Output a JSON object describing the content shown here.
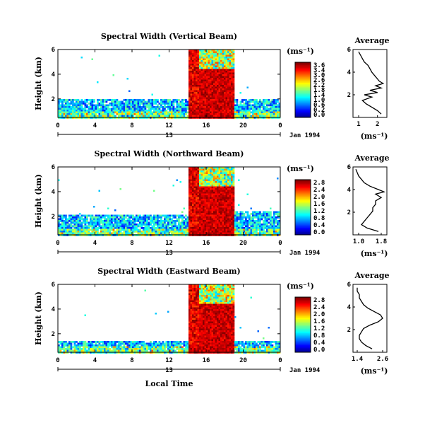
{
  "chart_data": [
    {
      "type": "heatmap",
      "title": "Spectral Width (Vertical Beam)",
      "ylabel": "Height (km)",
      "yticks": [
        "2",
        "4",
        "6"
      ],
      "xticks": [
        "0",
        "4",
        "8",
        "12",
        "16",
        "20",
        "0"
      ],
      "ylim": [
        0.5,
        6
      ],
      "xlim": [
        0,
        24
      ],
      "date_marker": "13",
      "date_label": "Jan 1994",
      "colorbar": {
        "unit": "(ms⁻¹)",
        "ticks": [
          "3.6",
          "3.4",
          "3.0",
          "2.6",
          "2.2",
          "1.8",
          "1.4",
          "1.0",
          "0.6",
          "0.2",
          "0.0"
        ]
      },
      "regions": [
        {
          "desc": "low layer",
          "x": [
            0,
            14
          ],
          "y": [
            0.5,
            2.0
          ],
          "width": 0.6
        },
        {
          "desc": "storm core",
          "x": [
            14,
            19
          ],
          "y": [
            0.5,
            6.0
          ],
          "width": 3.0
        },
        {
          "desc": "after storm",
          "x": [
            19,
            24
          ],
          "y": [
            0.5,
            2.0
          ],
          "width": 0.6
        }
      ],
      "average": {
        "title": "Average",
        "xlabel": "(ms⁻¹)",
        "xticks": [
          "1",
          "2"
        ],
        "yticks": [
          "2",
          "4",
          "6"
        ],
        "xlim": [
          0.7,
          2.5
        ],
        "ylim": [
          0,
          6
        ],
        "profile": {
          "height": [
            0.3,
            0.6,
            0.9,
            1.2,
            1.5,
            1.8,
            2.0,
            2.2,
            2.4,
            2.6,
            2.8,
            3.0,
            3.2,
            3.4,
            3.6,
            3.8,
            4.0,
            4.3,
            4.6,
            4.9,
            5.2,
            5.5,
            5.8
          ],
          "width": [
            2.2,
            2.0,
            1.7,
            1.4,
            1.2,
            1.7,
            1.3,
            2.0,
            1.6,
            2.2,
            1.9,
            2.3,
            2.1,
            2.0,
            1.9,
            1.8,
            1.7,
            1.6,
            1.5,
            1.3,
            1.2,
            1.1,
            1.0
          ]
        }
      }
    },
    {
      "type": "heatmap",
      "title": "Spectral Width (Northward Beam)",
      "ylabel": "Height (km)",
      "yticks": [
        "2",
        "4",
        "6"
      ],
      "xticks": [
        "0",
        "4",
        "8",
        "12",
        "16",
        "20",
        "0"
      ],
      "ylim": [
        0.5,
        6
      ],
      "xlim": [
        0,
        24
      ],
      "date_marker": "13",
      "date_label": "Jan 1994",
      "colorbar": {
        "unit": "(ms⁻¹)",
        "ticks": [
          "2.8",
          "2.4",
          "2.0",
          "1.6",
          "1.2",
          "0.8",
          "0.4",
          "0.0"
        ]
      },
      "regions": [
        {
          "desc": "low layer",
          "x": [
            0,
            14
          ],
          "y": [
            0.5,
            2.2
          ],
          "width": 0.6
        },
        {
          "desc": "storm core",
          "x": [
            14,
            19
          ],
          "y": [
            0.5,
            6.0
          ],
          "width": 2.4
        },
        {
          "desc": "after storm",
          "x": [
            19,
            24
          ],
          "y": [
            0.5,
            2.5
          ],
          "width": 0.6
        }
      ],
      "average": {
        "title": "Average",
        "xlabel": "(ms⁻¹)",
        "xticks": [
          "1.0",
          "1.8"
        ],
        "yticks": [
          "2",
          "4",
          "6"
        ],
        "xlim": [
          0.8,
          2.0
        ],
        "ylim": [
          0,
          6
        ],
        "profile": {
          "height": [
            0.3,
            0.6,
            0.9,
            1.2,
            1.5,
            1.8,
            2.1,
            2.4,
            2.7,
            3.0,
            3.3,
            3.6,
            3.8,
            4.0,
            4.3,
            4.6,
            4.9,
            5.2,
            5.5,
            5.8
          ],
          "width": [
            1.7,
            1.3,
            1.1,
            1.2,
            1.3,
            1.4,
            1.5,
            1.5,
            1.6,
            1.6,
            1.8,
            1.6,
            1.9,
            1.7,
            1.4,
            1.2,
            1.1,
            1.0,
            0.95,
            0.9
          ]
        }
      }
    },
    {
      "type": "heatmap",
      "title": "Spectral Width (Eastward Beam)",
      "ylabel": "Height (km)",
      "yticks": [
        "2",
        "4",
        "6"
      ],
      "xticks": [
        "0",
        "4",
        "8",
        "12",
        "16",
        "20",
        "0"
      ],
      "ylim": [
        0.5,
        6
      ],
      "xlim": [
        0,
        24
      ],
      "date_marker": "13",
      "date_label": "Jan 1994",
      "xlabel": "Local Time",
      "colorbar": {
        "unit": "(ms⁻¹)",
        "ticks": [
          "2.8",
          "2.4",
          "2.0",
          "1.6",
          "1.2",
          "0.8",
          "0.4",
          "0.0"
        ]
      },
      "regions": [
        {
          "desc": "low layer",
          "x": [
            0,
            14
          ],
          "y": [
            0.5,
            1.5
          ],
          "width": 0.6
        },
        {
          "desc": "storm core",
          "x": [
            14,
            19
          ],
          "y": [
            0.5,
            6.0
          ],
          "width": 2.4
        },
        {
          "desc": "after storm",
          "x": [
            19,
            24
          ],
          "y": [
            0.5,
            1.5
          ],
          "width": 0.6
        }
      ],
      "average": {
        "title": "Average",
        "xlabel": "(ms⁻¹)",
        "xticks": [
          "1.4",
          "2.6"
        ],
        "yticks": [
          "2",
          "4",
          "6"
        ],
        "xlim": [
          1.2,
          2.8
        ],
        "ylim": [
          0,
          6
        ],
        "profile": {
          "height": [
            0.3,
            0.6,
            0.9,
            1.2,
            1.5,
            1.8,
            2.1,
            2.4,
            2.7,
            3.0,
            3.3,
            3.6,
            3.9,
            4.2,
            4.5,
            4.8,
            5.1,
            5.4,
            5.7
          ],
          "width": [
            2.1,
            1.8,
            1.6,
            1.5,
            1.5,
            1.6,
            1.7,
            2.0,
            2.4,
            2.6,
            2.5,
            2.2,
            1.9,
            1.7,
            1.6,
            1.5,
            1.5,
            1.4,
            1.4
          ]
        }
      }
    }
  ]
}
